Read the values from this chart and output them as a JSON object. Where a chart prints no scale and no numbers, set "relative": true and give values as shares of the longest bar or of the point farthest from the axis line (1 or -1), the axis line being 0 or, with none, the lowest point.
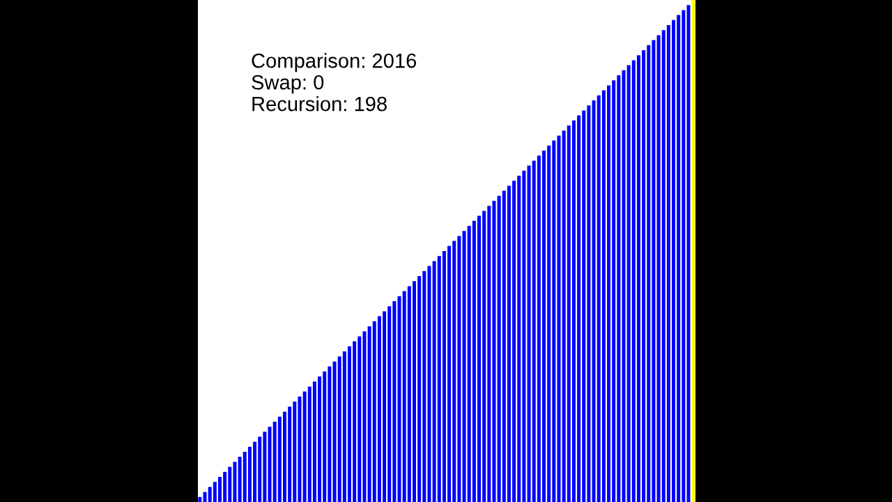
{
  "chart_data": {
    "type": "bar",
    "relative": true,
    "categories": [
      null,
      null,
      null,
      null,
      null,
      null,
      null,
      null,
      null,
      null,
      null,
      null,
      null,
      null,
      null,
      null,
      null,
      null,
      null,
      null,
      null,
      null,
      null,
      null,
      null,
      null,
      null,
      null,
      null,
      null,
      null,
      null,
      null,
      null,
      null,
      null,
      null,
      null,
      null,
      null,
      null,
      null,
      null,
      null,
      null,
      null,
      null,
      null,
      null,
      null,
      null,
      null,
      null,
      null,
      null,
      null,
      null,
      null,
      null,
      null,
      null,
      null,
      null,
      null,
      null,
      null,
      null,
      null,
      null,
      null,
      null,
      null,
      null,
      null,
      null,
      null,
      null,
      null,
      null,
      null,
      null,
      null,
      null,
      null,
      null,
      null,
      null,
      null,
      null,
      null,
      null,
      null,
      null,
      null,
      null,
      null,
      null,
      null,
      null,
      null
    ],
    "values": [
      0.01,
      0.02,
      0.03,
      0.04,
      0.05,
      0.06,
      0.07,
      0.08,
      0.09,
      0.1,
      0.11,
      0.12,
      0.13,
      0.14,
      0.15,
      0.16,
      0.17,
      0.18,
      0.19,
      0.2,
      0.21,
      0.22,
      0.23,
      0.24,
      0.25,
      0.26,
      0.27,
      0.28,
      0.29,
      0.3,
      0.31,
      0.32,
      0.33,
      0.34,
      0.35,
      0.36,
      0.37,
      0.38,
      0.39,
      0.4,
      0.41,
      0.42,
      0.43,
      0.44,
      0.45,
      0.46,
      0.47,
      0.48,
      0.49,
      0.5,
      0.51,
      0.52,
      0.53,
      0.54,
      0.55,
      0.56,
      0.57,
      0.58,
      0.59,
      0.6,
      0.61,
      0.62,
      0.63,
      0.64,
      0.65,
      0.66,
      0.67,
      0.68,
      0.69,
      0.7,
      0.71,
      0.72,
      0.73,
      0.74,
      0.75,
      0.76,
      0.77,
      0.78,
      0.79,
      0.8,
      0.81,
      0.82,
      0.83,
      0.84,
      0.85,
      0.86,
      0.87,
      0.88,
      0.89,
      0.9,
      0.91,
      0.92,
      0.93,
      0.94,
      0.95,
      0.96,
      0.97,
      0.98,
      0.99,
      1
    ],
    "colors": [
      "#0000ff",
      "#0000ff",
      "#0000ff",
      "#0000ff",
      "#0000ff",
      "#0000ff",
      "#0000ff",
      "#0000ff",
      "#0000ff",
      "#0000ff",
      "#0000ff",
      "#0000ff",
      "#0000ff",
      "#0000ff",
      "#0000ff",
      "#0000ff",
      "#0000ff",
      "#0000ff",
      "#0000ff",
      "#0000ff",
      "#0000ff",
      "#0000ff",
      "#0000ff",
      "#0000ff",
      "#0000ff",
      "#0000ff",
      "#0000ff",
      "#0000ff",
      "#0000ff",
      "#0000ff",
      "#0000ff",
      "#0000ff",
      "#0000ff",
      "#0000ff",
      "#0000ff",
      "#0000ff",
      "#0000ff",
      "#0000ff",
      "#0000ff",
      "#0000ff",
      "#0000ff",
      "#0000ff",
      "#0000ff",
      "#0000ff",
      "#0000ff",
      "#0000ff",
      "#0000ff",
      "#0000ff",
      "#0000ff",
      "#0000ff",
      "#0000ff",
      "#0000ff",
      "#0000ff",
      "#0000ff",
      "#0000ff",
      "#0000ff",
      "#0000ff",
      "#0000ff",
      "#0000ff",
      "#0000ff",
      "#0000ff",
      "#0000ff",
      "#0000ff",
      "#0000ff",
      "#0000ff",
      "#0000ff",
      "#0000ff",
      "#0000ff",
      "#0000ff",
      "#0000ff",
      "#0000ff",
      "#0000ff",
      "#0000ff",
      "#0000ff",
      "#0000ff",
      "#0000ff",
      "#0000ff",
      "#0000ff",
      "#0000ff",
      "#0000ff",
      "#0000ff",
      "#0000ff",
      "#0000ff",
      "#0000ff",
      "#0000ff",
      "#0000ff",
      "#0000ff",
      "#0000ff",
      "#0000ff",
      "#0000ff",
      "#0000ff",
      "#0000ff",
      "#0000ff",
      "#0000ff",
      "#0000ff",
      "#0000ff",
      "#0000ff",
      "#0000ff",
      "#0000ff",
      "#ffff00"
    ],
    "annotations": [
      "Comparison: 2016",
      "Swap: 0",
      "Recursion: 198"
    ]
  }
}
